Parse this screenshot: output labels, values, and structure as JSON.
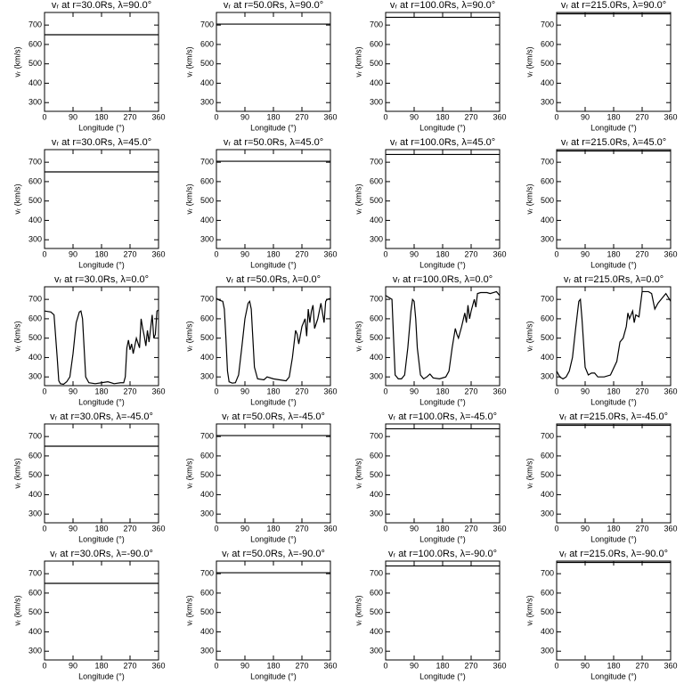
{
  "chart_data": [
    {
      "type": "line",
      "title": "vᵣ at r=30.0Rs, λ=90.0°",
      "x_label": "Longitude (°)",
      "y_label": "vᵣ (km/s)",
      "x": [
        0,
        360
      ],
      "values": [
        650,
        650
      ],
      "color": "#000000",
      "xlim": [
        0,
        360
      ],
      "ylim": [
        255,
        765
      ],
      "xticks": [
        0,
        90,
        180,
        270,
        360
      ],
      "yticks": [
        300,
        400,
        500,
        600,
        700
      ]
    },
    {
      "type": "line",
      "title": "vᵣ at r=50.0Rs, λ=90.0°",
      "x_label": "Longitude (°)",
      "y_label": "vᵣ (km/s)",
      "x": [
        0,
        360
      ],
      "values": [
        705,
        705
      ],
      "color": "#000000",
      "xlim": [
        0,
        360
      ],
      "ylim": [
        255,
        765
      ],
      "xticks": [
        0,
        90,
        180,
        270,
        360
      ],
      "yticks": [
        300,
        400,
        500,
        600,
        700
      ]
    },
    {
      "type": "line",
      "title": "vᵣ at r=100.0Rs, λ=90.0°",
      "x_label": "Longitude (°)",
      "y_label": "vᵣ (km/s)",
      "x": [
        0,
        360
      ],
      "values": [
        740,
        740
      ],
      "color": "#000000",
      "xlim": [
        0,
        360
      ],
      "ylim": [
        255,
        765
      ],
      "xticks": [
        0,
        90,
        180,
        270,
        360
      ],
      "yticks": [
        300,
        400,
        500,
        600,
        700
      ]
    },
    {
      "type": "line",
      "title": "vᵣ at r=215.0Rs, λ=90.0°",
      "x_label": "Longitude (°)",
      "y_label": "vᵣ (km/s)",
      "x": [
        0,
        360
      ],
      "values": [
        758,
        758
      ],
      "color": "#000000",
      "xlim": [
        0,
        360
      ],
      "ylim": [
        255,
        765
      ],
      "xticks": [
        0,
        90,
        180,
        270,
        360
      ],
      "yticks": [
        300,
        400,
        500,
        600,
        700
      ]
    },
    {
      "type": "line",
      "title": "vᵣ at r=30.0Rs, λ=45.0°",
      "x_label": "Longitude (°)",
      "y_label": "vᵣ (km/s)",
      "x": [
        0,
        360
      ],
      "values": [
        650,
        650
      ],
      "color": "#000000",
      "xlim": [
        0,
        360
      ],
      "ylim": [
        255,
        765
      ],
      "xticks": [
        0,
        90,
        180,
        270,
        360
      ],
      "yticks": [
        300,
        400,
        500,
        600,
        700
      ]
    },
    {
      "type": "line",
      "title": "vᵣ at r=50.0Rs, λ=45.0°",
      "x_label": "Longitude (°)",
      "y_label": "vᵣ (km/s)",
      "x": [
        0,
        360
      ],
      "values": [
        705,
        705
      ],
      "color": "#000000",
      "xlim": [
        0,
        360
      ],
      "ylim": [
        255,
        765
      ],
      "xticks": [
        0,
        90,
        180,
        270,
        360
      ],
      "yticks": [
        300,
        400,
        500,
        600,
        700
      ]
    },
    {
      "type": "line",
      "title": "vᵣ at r=100.0Rs, λ=45.0°",
      "x_label": "Longitude (°)",
      "y_label": "vᵣ (km/s)",
      "x": [
        0,
        360
      ],
      "values": [
        740,
        740
      ],
      "color": "#000000",
      "xlim": [
        0,
        360
      ],
      "ylim": [
        255,
        765
      ],
      "xticks": [
        0,
        90,
        180,
        270,
        360
      ],
      "yticks": [
        300,
        400,
        500,
        600,
        700
      ]
    },
    {
      "type": "line",
      "title": "vᵣ at r=215.0Rs, λ=45.0°",
      "x_label": "Longitude (°)",
      "y_label": "vᵣ (km/s)",
      "x": [
        0,
        360
      ],
      "values": [
        758,
        758
      ],
      "color": "#000000",
      "xlim": [
        0,
        360
      ],
      "ylim": [
        255,
        765
      ],
      "xticks": [
        0,
        90,
        180,
        270,
        360
      ],
      "yticks": [
        300,
        400,
        500,
        600,
        700
      ]
    },
    {
      "type": "line",
      "title": "vᵣ at r=30.0Rs, λ=0.0°",
      "x_label": "Longitude (°)",
      "y_label": "vᵣ (km/s)",
      "x": [
        0,
        20,
        30,
        40,
        45,
        50,
        60,
        70,
        80,
        90,
        100,
        110,
        115,
        120,
        125,
        130,
        140,
        160,
        180,
        200,
        220,
        240,
        250,
        255,
        260,
        265,
        270,
        275,
        280,
        290,
        300,
        305,
        310,
        315,
        320,
        325,
        330,
        340,
        345,
        350,
        355,
        360
      ],
      "values": [
        640,
        635,
        620,
        400,
        280,
        265,
        262,
        275,
        300,
        420,
        580,
        635,
        640,
        600,
        450,
        300,
        270,
        265,
        270,
        275,
        265,
        270,
        270,
        300,
        450,
        490,
        440,
        470,
        420,
        500,
        450,
        600,
        550,
        510,
        460,
        540,
        480,
        620,
        500,
        520,
        640,
        645
      ],
      "color": "#000000",
      "xlim": [
        0,
        360
      ],
      "ylim": [
        255,
        765
      ],
      "xticks": [
        0,
        90,
        180,
        270,
        360
      ],
      "yticks": [
        300,
        400,
        500,
        600,
        700
      ]
    },
    {
      "type": "line",
      "title": "vᵣ at r=50.0Rs, λ=0.0°",
      "x_label": "Longitude (°)",
      "y_label": "vᵣ (km/s)",
      "x": [
        0,
        10,
        20,
        25,
        30,
        35,
        40,
        50,
        60,
        70,
        80,
        90,
        100,
        105,
        110,
        115,
        120,
        130,
        150,
        160,
        180,
        200,
        220,
        230,
        240,
        250,
        255,
        260,
        270,
        280,
        285,
        290,
        295,
        300,
        305,
        310,
        320,
        330,
        340,
        345,
        350,
        360
      ],
      "values": [
        705,
        695,
        690,
        650,
        500,
        330,
        275,
        268,
        270,
        310,
        450,
        600,
        680,
        690,
        650,
        500,
        350,
        290,
        285,
        300,
        290,
        285,
        280,
        300,
        400,
        540,
        520,
        470,
        560,
        600,
        510,
        650,
        580,
        640,
        670,
        550,
        600,
        680,
        580,
        690,
        700,
        705
      ],
      "color": "#000000",
      "xlim": [
        0,
        360
      ],
      "ylim": [
        255,
        765
      ],
      "xticks": [
        0,
        90,
        180,
        270,
        360
      ],
      "yticks": [
        300,
        400,
        500,
        600,
        700
      ]
    },
    {
      "type": "line",
      "title": "vᵣ at r=100.0Rs, λ=0.0°",
      "x_label": "Longitude (°)",
      "y_label": "vᵣ (km/s)",
      "x": [
        0,
        10,
        20,
        25,
        30,
        40,
        50,
        60,
        70,
        80,
        85,
        90,
        95,
        100,
        110,
        120,
        130,
        140,
        150,
        170,
        190,
        200,
        210,
        220,
        225,
        230,
        240,
        250,
        255,
        260,
        265,
        270,
        280,
        285,
        290,
        300,
        320,
        330,
        340,
        350,
        360
      ],
      "values": [
        720,
        710,
        700,
        500,
        310,
        290,
        290,
        310,
        450,
        640,
        700,
        690,
        600,
        450,
        310,
        290,
        300,
        315,
        295,
        290,
        300,
        330,
        450,
        550,
        520,
        500,
        560,
        630,
        580,
        670,
        600,
        640,
        700,
        660,
        730,
        735,
        735,
        730,
        735,
        740,
        720
      ],
      "color": "#000000",
      "xlim": [
        0,
        360
      ],
      "ylim": [
        255,
        765
      ],
      "xticks": [
        0,
        90,
        180,
        270,
        360
      ],
      "yticks": [
        300,
        400,
        500,
        600,
        700
      ]
    },
    {
      "type": "line",
      "title": "vᵣ at r=215.0Rs, λ=0.0°",
      "x_label": "Longitude (°)",
      "y_label": "vᵣ (km/s)",
      "x": [
        0,
        10,
        20,
        30,
        40,
        50,
        60,
        70,
        75,
        80,
        90,
        100,
        110,
        120,
        130,
        150,
        170,
        190,
        200,
        210,
        220,
        225,
        230,
        240,
        245,
        250,
        260,
        270,
        290,
        300,
        310,
        320,
        330,
        340,
        345,
        360
      ],
      "values": [
        330,
        300,
        290,
        300,
        330,
        400,
        550,
        690,
        700,
        600,
        350,
        310,
        320,
        320,
        300,
        300,
        310,
        380,
        480,
        500,
        560,
        630,
        600,
        640,
        580,
        620,
        610,
        740,
        740,
        730,
        650,
        680,
        700,
        720,
        730,
        690
      ],
      "color": "#000000",
      "xlim": [
        0,
        360
      ],
      "ylim": [
        255,
        765
      ],
      "xticks": [
        0,
        90,
        180,
        270,
        360
      ],
      "yticks": [
        300,
        400,
        500,
        600,
        700
      ]
    },
    {
      "type": "line",
      "title": "vᵣ at r=30.0Rs, λ=-45.0°",
      "x_label": "Longitude (°)",
      "y_label": "vᵣ (km/s)",
      "x": [
        0,
        360
      ],
      "values": [
        650,
        650
      ],
      "color": "#000000",
      "xlim": [
        0,
        360
      ],
      "ylim": [
        255,
        765
      ],
      "xticks": [
        0,
        90,
        180,
        270,
        360
      ],
      "yticks": [
        300,
        400,
        500,
        600,
        700
      ]
    },
    {
      "type": "line",
      "title": "vᵣ at r=50.0Rs, λ=-45.0°",
      "x_label": "Longitude (°)",
      "y_label": "vᵣ (km/s)",
      "x": [
        0,
        360
      ],
      "values": [
        705,
        705
      ],
      "color": "#000000",
      "xlim": [
        0,
        360
      ],
      "ylim": [
        255,
        765
      ],
      "xticks": [
        0,
        90,
        180,
        270,
        360
      ],
      "yticks": [
        300,
        400,
        500,
        600,
        700
      ]
    },
    {
      "type": "line",
      "title": "vᵣ at r=100.0Rs, λ=-45.0°",
      "x_label": "Longitude (°)",
      "y_label": "vᵣ (km/s)",
      "x": [
        0,
        360
      ],
      "values": [
        740,
        740
      ],
      "color": "#000000",
      "xlim": [
        0,
        360
      ],
      "ylim": [
        255,
        765
      ],
      "xticks": [
        0,
        90,
        180,
        270,
        360
      ],
      "yticks": [
        300,
        400,
        500,
        600,
        700
      ]
    },
    {
      "type": "line",
      "title": "vᵣ at r=215.0Rs, λ=-45.0°",
      "x_label": "Longitude (°)",
      "y_label": "vᵣ (km/s)",
      "x": [
        0,
        360
      ],
      "values": [
        758,
        758
      ],
      "color": "#000000",
      "xlim": [
        0,
        360
      ],
      "ylim": [
        255,
        765
      ],
      "xticks": [
        0,
        90,
        180,
        270,
        360
      ],
      "yticks": [
        300,
        400,
        500,
        600,
        700
      ]
    },
    {
      "type": "line",
      "title": "vᵣ at r=30.0Rs, λ=-90.0°",
      "x_label": "Longitude (°)",
      "y_label": "vᵣ (km/s)",
      "x": [
        0,
        360
      ],
      "values": [
        650,
        650
      ],
      "color": "#000000",
      "xlim": [
        0,
        360
      ],
      "ylim": [
        255,
        765
      ],
      "xticks": [
        0,
        90,
        180,
        270,
        360
      ],
      "yticks": [
        300,
        400,
        500,
        600,
        700
      ]
    },
    {
      "type": "line",
      "title": "vᵣ at r=50.0Rs, λ=-90.0°",
      "x_label": "Longitude (°)",
      "y_label": "vᵣ (km/s)",
      "x": [
        0,
        360
      ],
      "values": [
        705,
        705
      ],
      "color": "#000000",
      "xlim": [
        0,
        360
      ],
      "ylim": [
        255,
        765
      ],
      "xticks": [
        0,
        90,
        180,
        270,
        360
      ],
      "yticks": [
        300,
        400,
        500,
        600,
        700
      ]
    },
    {
      "type": "line",
      "title": "vᵣ at r=100.0Rs, λ=-90.0°",
      "x_label": "Longitude (°)",
      "y_label": "vᵣ (km/s)",
      "x": [
        0,
        360
      ],
      "values": [
        740,
        740
      ],
      "color": "#000000",
      "xlim": [
        0,
        360
      ],
      "ylim": [
        255,
        765
      ],
      "xticks": [
        0,
        90,
        180,
        270,
        360
      ],
      "yticks": [
        300,
        400,
        500,
        600,
        700
      ]
    },
    {
      "type": "line",
      "title": "vᵣ at r=215.0Rs, λ=-90.0°",
      "x_label": "Longitude (°)",
      "y_label": "vᵣ (km/s)",
      "x": [
        0,
        360
      ],
      "values": [
        758,
        758
      ],
      "color": "#000000",
      "xlim": [
        0,
        360
      ],
      "ylim": [
        255,
        765
      ],
      "xticks": [
        0,
        90,
        180,
        270,
        360
      ],
      "yticks": [
        300,
        400,
        500,
        600,
        700
      ]
    }
  ]
}
